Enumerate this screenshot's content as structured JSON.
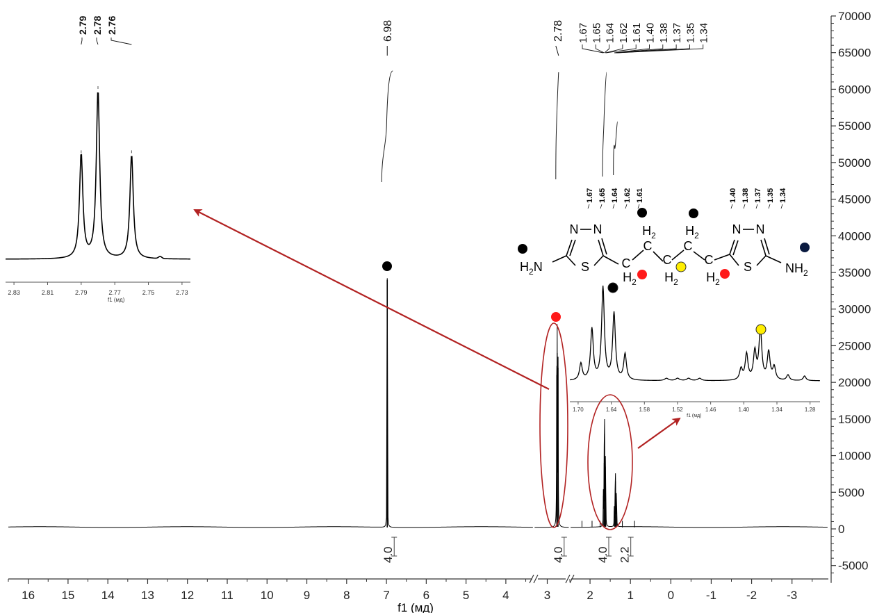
{
  "chart_data": {
    "type": "line",
    "title": "",
    "xlabel": "f1 (мд)",
    "ylabel": "",
    "x_reversed": true,
    "xlim": [
      16.5,
      -3.9
    ],
    "ylim": [
      -7000,
      70000
    ],
    "x_ticks": [
      16,
      15,
      14,
      13,
      12,
      11,
      10,
      9,
      8,
      7,
      6,
      5,
      4,
      3,
      2,
      1,
      0,
      -1,
      -2,
      -3
    ],
    "x_tick_labels": [
      "16",
      "15",
      "14",
      "13",
      "12",
      "11",
      "10",
      "9",
      "8",
      "7",
      "6",
      "5",
      "4",
      "3",
      "2",
      "1",
      "0",
      "-1",
      "-2",
      "-3"
    ],
    "y_ticks": [
      -5000,
      0,
      5000,
      10000,
      15000,
      20000,
      25000,
      30000,
      35000,
      40000,
      45000,
      50000,
      55000,
      60000,
      65000,
      70000
    ],
    "y_tick_labels": [
      "-5000",
      "0",
      "5000",
      "10000",
      "15000",
      "20000",
      "25000",
      "30000",
      "35000",
      "40000",
      "45000",
      "50000",
      "55000",
      "60000",
      "65000",
      "70000"
    ],
    "axis_break": [
      3.3,
      2.5
    ],
    "peaks": [
      {
        "x": 6.98,
        "y": 34000
      },
      {
        "x": 2.79,
        "y": 21000
      },
      {
        "x": 2.78,
        "y": 24000
      },
      {
        "x": 2.76,
        "y": 22000
      },
      {
        "x": 1.67,
        "y": 4500
      },
      {
        "x": 1.65,
        "y": 9000
      },
      {
        "x": 1.64,
        "y": 13000
      },
      {
        "x": 1.62,
        "y": 8500
      },
      {
        "x": 1.61,
        "y": 3500
      },
      {
        "x": 1.4,
        "y": 2500
      },
      {
        "x": 1.38,
        "y": 4000
      },
      {
        "x": 1.37,
        "y": 6500
      },
      {
        "x": 1.35,
        "y": 4000
      },
      {
        "x": 1.34,
        "y": 2000
      }
    ],
    "peak_labels": [
      "6.98",
      "2.78",
      "1.67",
      "1.65",
      "1.64",
      "1.62",
      "1.61",
      "1.40",
      "1.38",
      "1.37",
      "1.35",
      "1.34"
    ],
    "integrals": [
      {
        "x": 6.98,
        "label": "4.0"
      },
      {
        "x": 2.78,
        "label": "4.0"
      },
      {
        "x": 1.64,
        "label": "4.0"
      },
      {
        "x": 1.37,
        "label": "2.2"
      }
    ],
    "insets": [
      {
        "name": "inset-triplet",
        "peak_labels": [
          "2.79",
          "2.78",
          "2.76"
        ],
        "x_tick_labels": [
          "2.83",
          "2.81",
          "2.79",
          "2.77",
          "2.75",
          "2.73"
        ],
        "xlabel": "f1 (мд)",
        "peaks": [
          {
            "x": 2.79,
            "h": 0.62
          },
          {
            "x": 2.78,
            "h": 1.0
          },
          {
            "x": 2.76,
            "h": 0.62
          }
        ]
      },
      {
        "name": "inset-multiplets",
        "peak_labels_left": [
          "1.67",
          "1.65",
          "1.64",
          "1.62",
          "1.61"
        ],
        "peak_labels_right": [
          "1.40",
          "1.38",
          "1.37",
          "1.35",
          "1.34"
        ],
        "x_tick_labels": [
          "1.70",
          "1.64",
          "1.58",
          "1.52",
          "1.46",
          "1.40",
          "1.34",
          "1.28"
        ],
        "xlabel": "f1 (мд)"
      }
    ],
    "structure_labels": {
      "left_ring_top": "N—N",
      "left_ring_s": "S",
      "amine_left": "H",
      "amine_left_sub": "2",
      "amine_left_n": "N",
      "ch2_top": "H",
      "ch2_sub": "2",
      "c": "C",
      "right_ring_top": "N—N",
      "right_ring_s": "S",
      "amine_right": "NH",
      "amine_right_sub": "2"
    },
    "colors": {
      "line": "#000000",
      "annotation": "#b22222",
      "marker_red": "#ff1a1a",
      "marker_yellow": "#ffee00",
      "marker_black": "#000000",
      "marker_navy": "#0a1a40"
    }
  }
}
